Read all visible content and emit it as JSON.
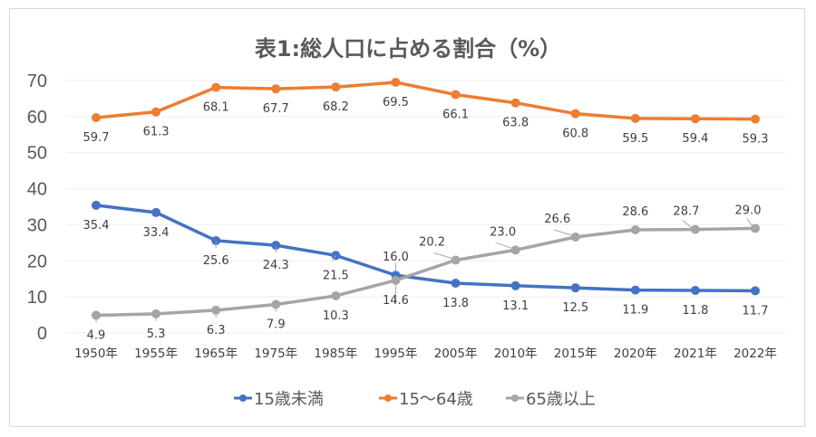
{
  "chart_data": {
    "type": "line",
    "title": "表1:総人口に占める割合（%）",
    "xlabel": "",
    "ylabel": "",
    "ylim": [
      0,
      70
    ],
    "yticks": [
      "0",
      "10",
      "20",
      "30",
      "40",
      "50",
      "60",
      "70"
    ],
    "grid": true,
    "legend_position": "bottom",
    "categories": [
      "1950年",
      "1955年",
      "1965年",
      "1975年",
      "1985年",
      "1995年",
      "2005年",
      "2010年",
      "2015年",
      "2020年",
      "2021年",
      "2022年"
    ],
    "series": [
      {
        "name": "15歳未満",
        "color": "#4472c4",
        "values": [
          35.4,
          33.4,
          25.6,
          24.3,
          21.5,
          16.0,
          13.8,
          13.1,
          12.5,
          11.9,
          11.8,
          11.7
        ],
        "labels": [
          "35.4",
          "33.4",
          "25.6",
          "24.3",
          "21.5",
          "16.0",
          "13.8",
          "13.1",
          "12.5",
          "11.9",
          "11.8",
          "11.7"
        ]
      },
      {
        "name": "15～64歳",
        "color": "#ed7d31",
        "values": [
          59.7,
          61.3,
          68.1,
          67.7,
          68.2,
          69.5,
          66.1,
          63.8,
          60.8,
          59.5,
          59.4,
          59.3
        ],
        "labels": [
          "59.7",
          "61.3",
          "68.1",
          "67.7",
          "68.2",
          "69.5",
          "66.1",
          "63.8",
          "60.8",
          "59.5",
          "59.4",
          "59.3"
        ]
      },
      {
        "name": "65歳以上",
        "color": "#a5a5a5",
        "values": [
          4.9,
          5.3,
          6.3,
          7.9,
          10.3,
          14.6,
          20.2,
          23.0,
          26.6,
          28.6,
          28.7,
          29.0
        ],
        "labels": [
          "4.9",
          "5.3",
          "6.3",
          "7.9",
          "10.3",
          "14.6",
          "20.2",
          "23.0",
          "26.6",
          "28.6",
          "28.7",
          "29.0"
        ]
      }
    ]
  }
}
